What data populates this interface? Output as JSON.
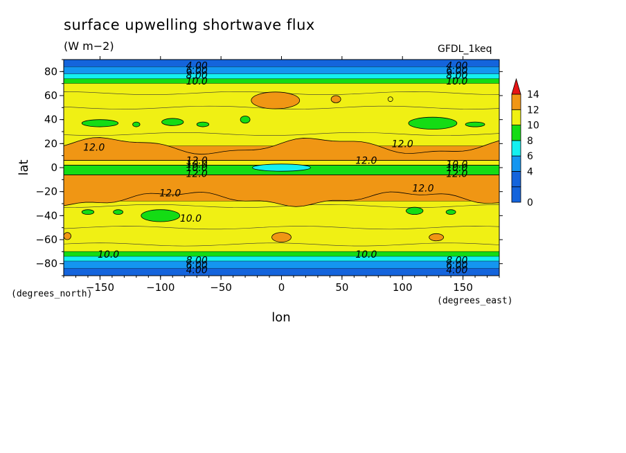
{
  "chart_data": {
    "type": "heatmap",
    "title": "surface upwelling shortwave flux",
    "units": "(W m−2)",
    "model": "GFDL_1keq",
    "xlabel": "lon",
    "ylabel": "lat",
    "x_unit_label": "(degrees_east)",
    "y_unit_label": "(degrees_north)",
    "xlim": [
      -180,
      180
    ],
    "ylim": [
      -90,
      90
    ],
    "x_ticks": [
      -150,
      -100,
      -50,
      0,
      50,
      100,
      150
    ],
    "x_tick_labels": [
      "−150",
      "−100",
      "−50",
      "0",
      "50",
      "100",
      "150"
    ],
    "y_ticks": [
      -80,
      -60,
      -40,
      -20,
      0,
      20,
      40,
      60,
      80
    ],
    "y_tick_labels": [
      "−80",
      "−60",
      "−40",
      "−20",
      "0",
      "20",
      "40",
      "60",
      "80"
    ],
    "colorbar": {
      "levels": [
        0,
        2,
        4,
        6,
        8,
        10,
        12,
        14
      ],
      "labels": [
        "0",
        "4",
        "6",
        "8",
        "10",
        "12",
        "14"
      ],
      "label_values": [
        0,
        4,
        6,
        8,
        10,
        12,
        14
      ],
      "colors": [
        "#1464dc",
        "#1496f0",
        "#14f0f0",
        "#14dc14",
        "#f0f014",
        "#f09614",
        "#e61414"
      ]
    },
    "colors": {
      "deep_blue": "#1464dc",
      "blue": "#1496f0",
      "cyan": "#14f0f0",
      "green": "#14dc14",
      "yellow": "#f0f014",
      "orange": "#f09614",
      "red": "#e61414"
    },
    "latitude_bands": [
      {
        "lat_from": 84,
        "lat_to": 90,
        "level": "0-4"
      },
      {
        "lat_from": 78,
        "lat_to": 84,
        "level": "4-6"
      },
      {
        "lat_from": 74,
        "lat_to": 78,
        "level": "6-8"
      },
      {
        "lat_from": 70,
        "lat_to": 74,
        "level": "8-10"
      },
      {
        "lat_from": 18,
        "lat_to": 70,
        "level": "10-12"
      },
      {
        "lat_from": 6,
        "lat_to": 18,
        "level": "12-14"
      },
      {
        "lat_from": 2,
        "lat_to": 6,
        "level": "10-12"
      },
      {
        "lat_from": -6,
        "lat_to": 2,
        "level": "8-10"
      },
      {
        "lat_from": -28,
        "lat_to": -6,
        "level": "12-14"
      },
      {
        "lat_from": -70,
        "lat_to": -28,
        "level": "10-12"
      },
      {
        "lat_from": -74,
        "lat_to": -70,
        "level": "8-10"
      },
      {
        "lat_from": -78,
        "lat_to": -74,
        "level": "6-8"
      },
      {
        "lat_from": -84,
        "lat_to": -78,
        "level": "4-6"
      },
      {
        "lat_from": -90,
        "lat_to": -84,
        "level": "0-4"
      }
    ],
    "contour_labels": [
      {
        "text": "4.00",
        "lon": -70,
        "lat": 85
      },
      {
        "text": "6.00",
        "lon": -70,
        "lat": 81
      },
      {
        "text": "8.00",
        "lon": -70,
        "lat": 77
      },
      {
        "text": "10.0",
        "lon": -70,
        "lat": 72
      },
      {
        "text": "4.00",
        "lon": 145,
        "lat": 85
      },
      {
        "text": "6.00",
        "lon": 145,
        "lat": 81
      },
      {
        "text": "8.00",
        "lon": 145,
        "lat": 77
      },
      {
        "text": "10.0",
        "lon": 145,
        "lat": 72
      },
      {
        "text": "12.0",
        "lon": -155,
        "lat": 17
      },
      {
        "text": "12.0",
        "lon": 100,
        "lat": 20
      },
      {
        "text": "12.0",
        "lon": -70,
        "lat": 6
      },
      {
        "text": "10.0",
        "lon": -70,
        "lat": 3
      },
      {
        "text": "10.0",
        "lon": -70,
        "lat": 0
      },
      {
        "text": "12.0",
        "lon": -70,
        "lat": -5
      },
      {
        "text": "12.0",
        "lon": 70,
        "lat": 6
      },
      {
        "text": "10.0",
        "lon": 145,
        "lat": 3
      },
      {
        "text": "10.0",
        "lon": 145,
        "lat": 0
      },
      {
        "text": "12.0",
        "lon": 145,
        "lat": -5
      },
      {
        "text": "12.0",
        "lon": -92,
        "lat": -21
      },
      {
        "text": "12.0",
        "lon": 117,
        "lat": -17
      },
      {
        "text": "10.0",
        "lon": -75,
        "lat": -42
      },
      {
        "text": "10.0",
        "lon": -143,
        "lat": -72
      },
      {
        "text": "10.0",
        "lon": 70,
        "lat": -72
      },
      {
        "text": "8.00",
        "lon": -70,
        "lat": -77
      },
      {
        "text": "6.00",
        "lon": -70,
        "lat": -81
      },
      {
        "text": "4.00",
        "lon": -70,
        "lat": -85
      },
      {
        "text": "8.00",
        "lon": 145,
        "lat": -77
      },
      {
        "text": "6.00",
        "lon": 145,
        "lat": -81
      },
      {
        "text": "4.00",
        "lon": 145,
        "lat": -85
      }
    ],
    "patches": [
      {
        "level": "12-14",
        "lon": -5,
        "lat": 56,
        "dlon": 20,
        "dlat": 7
      },
      {
        "level": "12-14",
        "lon": 45,
        "lat": 57,
        "dlon": 4,
        "dlat": 3
      },
      {
        "level": "10-12",
        "lon": 90,
        "lat": 57,
        "dlon": 2,
        "dlat": 2
      },
      {
        "level": "8-10",
        "lon": -150,
        "lat": 37,
        "dlon": 15,
        "dlat": 3
      },
      {
        "level": "8-10",
        "lon": -120,
        "lat": 36,
        "dlon": 3,
        "dlat": 2
      },
      {
        "level": "8-10",
        "lon": -90,
        "lat": 38,
        "dlon": 9,
        "dlat": 3
      },
      {
        "level": "8-10",
        "lon": -65,
        "lat": 36,
        "dlon": 5,
        "dlat": 2
      },
      {
        "level": "8-10",
        "lon": -30,
        "lat": 40,
        "dlon": 4,
        "dlat": 3
      },
      {
        "level": "8-10",
        "lon": 125,
        "lat": 37,
        "dlon": 20,
        "dlat": 5
      },
      {
        "level": "8-10",
        "lon": 160,
        "lat": 36,
        "dlon": 8,
        "dlat": 2
      },
      {
        "level": "8-10",
        "lon": -160,
        "lat": -37,
        "dlon": 5,
        "dlat": 2
      },
      {
        "level": "8-10",
        "lon": -135,
        "lat": -37,
        "dlon": 4,
        "dlat": 2
      },
      {
        "level": "8-10",
        "lon": -100,
        "lat": -40,
        "dlon": 16,
        "dlat": 5
      },
      {
        "level": "8-10",
        "lon": 110,
        "lat": -36,
        "dlon": 7,
        "dlat": 3
      },
      {
        "level": "8-10",
        "lon": 140,
        "lat": -37,
        "dlon": 4,
        "dlat": 2
      },
      {
        "level": "12-14",
        "lon": -177,
        "lat": -57,
        "dlon": 3,
        "dlat": 3
      },
      {
        "level": "12-14",
        "lon": 0,
        "lat": -58,
        "dlon": 8,
        "dlat": 4
      },
      {
        "level": "12-14",
        "lon": 128,
        "lat": -58,
        "dlon": 6,
        "dlat": 3
      },
      {
        "level": "4-6",
        "lon": -5,
        "lat": -0.5,
        "dlon": 18,
        "dlat": 2
      },
      {
        "level": "6-8",
        "lon": 0,
        "lat": 0,
        "dlon": 24,
        "dlat": 3
      }
    ]
  }
}
